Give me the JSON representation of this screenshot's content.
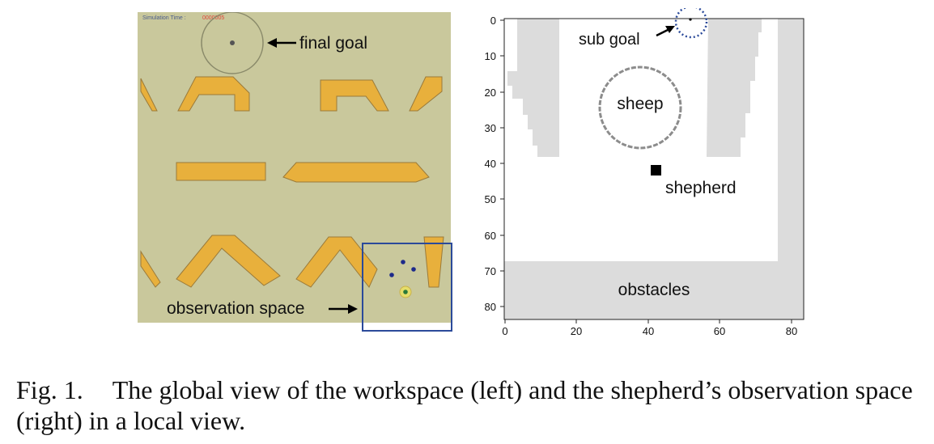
{
  "left": {
    "sim_label": "Simulation Time :",
    "sim_value": "0000005",
    "final_goal_label": "final goal",
    "observation_label": "observation space"
  },
  "right": {
    "sub_goal_label": "sub goal",
    "sheep_label": "sheep",
    "shepherd_label": "shepherd",
    "obstacles_label": "obstacles",
    "y_ticks": [
      "0",
      "10",
      "20",
      "30",
      "40",
      "50",
      "60",
      "70",
      "80"
    ],
    "x_ticks": [
      "0",
      "20",
      "40",
      "60",
      "80"
    ]
  },
  "caption": {
    "number": "Fig. 1.",
    "text": "The global view of the workspace (left) and the shepherd’s observation space (right) in a local view."
  },
  "colors": {
    "ground": "#c9c89c",
    "obstacle_orange": "#e8b03c",
    "obs_box": "#2b4a9a",
    "grid_gray": "#dcdcdc"
  }
}
